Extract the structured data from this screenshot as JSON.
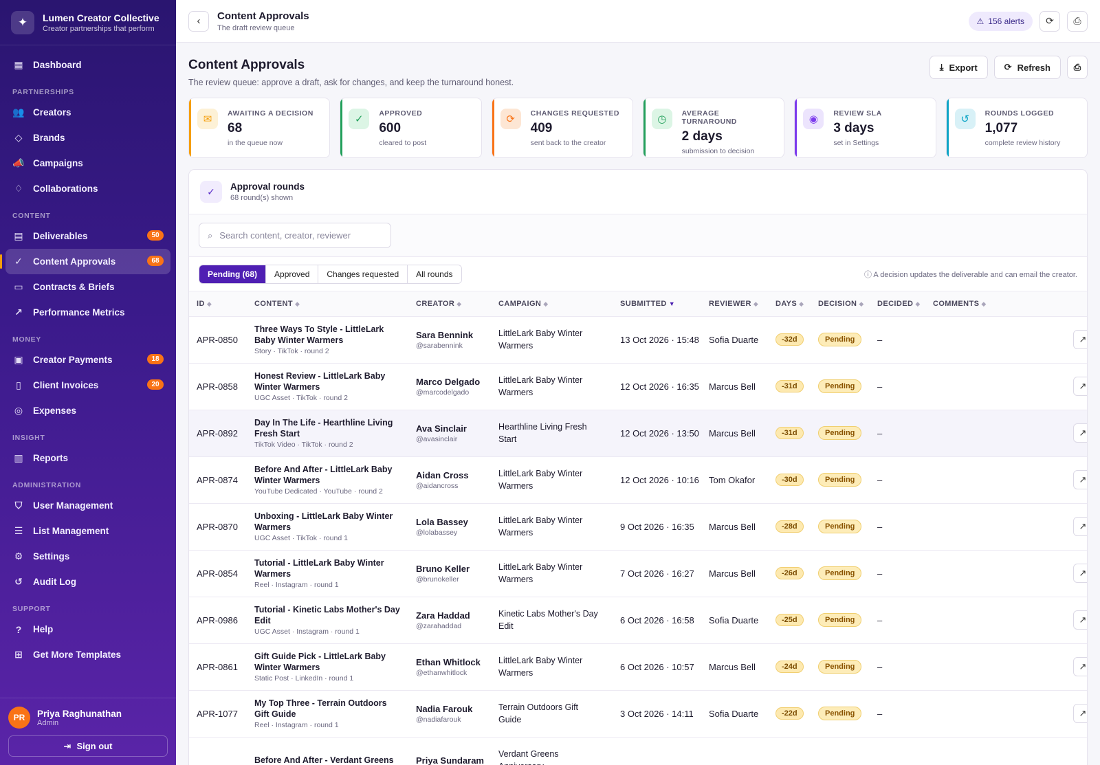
{
  "brand": {
    "name": "Lumen Creator Collective",
    "tagline": "Creator partnerships that perform",
    "logo_icon": "sparkles-icon"
  },
  "sidebar": {
    "dashboard": {
      "label": "Dashboard",
      "icon": "grid-icon"
    },
    "sections": [
      {
        "title": "PARTNERSHIPS",
        "items": [
          {
            "label": "Creators",
            "icon": "users-icon",
            "badge": null
          },
          {
            "label": "Brands",
            "icon": "tag-icon",
            "badge": null
          },
          {
            "label": "Campaigns",
            "icon": "megaphone-icon",
            "badge": null
          },
          {
            "label": "Collaborations",
            "icon": "handshake-icon",
            "badge": null
          }
        ]
      },
      {
        "title": "CONTENT",
        "items": [
          {
            "label": "Deliverables",
            "icon": "table-icon",
            "badge": "50"
          },
          {
            "label": "Content Approvals",
            "icon": "check-circle-icon",
            "badge": "68",
            "active": true
          },
          {
            "label": "Contracts & Briefs",
            "icon": "folder-icon",
            "badge": null
          },
          {
            "label": "Performance Metrics",
            "icon": "trend-icon",
            "badge": null
          }
        ]
      },
      {
        "title": "MONEY",
        "items": [
          {
            "label": "Creator Payments",
            "icon": "wallet-icon",
            "badge": "18"
          },
          {
            "label": "Client Invoices",
            "icon": "invoice-icon",
            "badge": "20"
          },
          {
            "label": "Expenses",
            "icon": "coins-icon",
            "badge": null
          }
        ]
      },
      {
        "title": "INSIGHT",
        "items": [
          {
            "label": "Reports",
            "icon": "bar-chart-icon",
            "badge": null
          }
        ]
      },
      {
        "title": "ADMINISTRATION",
        "items": [
          {
            "label": "User Management",
            "icon": "shield-icon",
            "badge": null
          },
          {
            "label": "List Management",
            "icon": "list-icon",
            "badge": null
          },
          {
            "label": "Settings",
            "icon": "gear-icon",
            "badge": null
          },
          {
            "label": "Audit Log",
            "icon": "history-icon",
            "badge": null
          }
        ]
      },
      {
        "title": "SUPPORT",
        "items": [
          {
            "label": "Help",
            "icon": "help-icon",
            "badge": null
          },
          {
            "label": "Get More Templates",
            "icon": "gift-icon",
            "badge": null
          }
        ]
      }
    ]
  },
  "user": {
    "initials": "PR",
    "name": "Priya Raghunathan",
    "role": "Admin",
    "signout_label": "Sign out"
  },
  "topbar": {
    "title": "Content Approvals",
    "subtitle": "The draft review queue",
    "alerts_label": "156 alerts"
  },
  "page": {
    "title": "Content Approvals",
    "subtitle": "The review queue: approve a draft, ask for changes, and keep the turnaround honest.",
    "export_label": "Export",
    "refresh_label": "Refresh"
  },
  "stats": [
    {
      "label": "AWAITING A DECISION",
      "value": "68",
      "note": "in the queue now",
      "icon": "inbox-icon",
      "color": "#f59e0b",
      "bg": "#fdf1d6"
    },
    {
      "label": "APPROVED",
      "value": "600",
      "note": "cleared to post",
      "icon": "check-circle-icon",
      "color": "#22a05b",
      "bg": "#dcf5e5"
    },
    {
      "label": "CHANGES REQUESTED",
      "value": "409",
      "note": "sent back to the creator",
      "icon": "refresh-icon",
      "color": "#f97316",
      "bg": "#fde6d4"
    },
    {
      "label": "AVERAGE TURNAROUND",
      "value": "2 days",
      "note": "submission to decision",
      "icon": "clock-icon",
      "color": "#22a05b",
      "bg": "#dcf5e5"
    },
    {
      "label": "REVIEW SLA",
      "value": "3 days",
      "note": "set in Settings",
      "icon": "target-icon",
      "color": "#7c3aed",
      "bg": "#ece4fd"
    },
    {
      "label": "ROUNDS LOGGED",
      "value": "1,077",
      "note": "complete review history",
      "icon": "history-icon",
      "color": "#0ea5c6",
      "bg": "#d8f1f7"
    }
  ],
  "panel": {
    "title": "Approval rounds",
    "subtitle": "68 round(s) shown",
    "search_placeholder": "Search content, creator, reviewer",
    "tabs": [
      "Pending (68)",
      "Approved",
      "Changes requested",
      "All rounds"
    ],
    "note": "A decision updates the deliverable and can email the creator."
  },
  "table": {
    "columns": [
      "ID",
      "CONTENT",
      "CREATOR",
      "CAMPAIGN",
      "SUBMITTED",
      "REVIEWER",
      "DAYS",
      "DECISION",
      "DECIDED",
      "COMMENTS"
    ],
    "sorted_column": "SUBMITTED",
    "rows": [
      {
        "id": "APR-0850",
        "title": "Three Ways To Style - LittleLark Baby Winter Warmers",
        "meta": "Story · TikTok · round 2",
        "creator": "Sara Bennink",
        "handle": "@sarabennink",
        "campaign": "LittleLark Baby Winter Warmers",
        "submitted": "13 Oct 2026 · 15:48",
        "reviewer": "Sofia Duarte",
        "days": "-32d",
        "decision": "Pending",
        "decided": "–"
      },
      {
        "id": "APR-0858",
        "title": "Honest Review - LittleLark Baby Winter Warmers",
        "meta": "UGC Asset · TikTok · round 2",
        "creator": "Marco Delgado",
        "handle": "@marcodelgado",
        "campaign": "LittleLark Baby Winter Warmers",
        "submitted": "12 Oct 2026 · 16:35",
        "reviewer": "Marcus Bell",
        "days": "-31d",
        "decision": "Pending",
        "decided": "–"
      },
      {
        "id": "APR-0892",
        "title": "Day In The Life - Hearthline Living Fresh Start",
        "meta": "TikTok Video · TikTok · round 2",
        "creator": "Ava Sinclair",
        "handle": "@avasinclair",
        "campaign": "Hearthline Living Fresh Start",
        "submitted": "12 Oct 2026 · 13:50",
        "reviewer": "Marcus Bell",
        "days": "-31d",
        "decision": "Pending",
        "decided": "–"
      },
      {
        "id": "APR-0874",
        "title": "Before And After - LittleLark Baby Winter Warmers",
        "meta": "YouTube Dedicated · YouTube · round 2",
        "creator": "Aidan Cross",
        "handle": "@aidancross",
        "campaign": "LittleLark Baby Winter Warmers",
        "submitted": "12 Oct 2026 · 10:16",
        "reviewer": "Tom Okafor",
        "days": "-30d",
        "decision": "Pending",
        "decided": "–"
      },
      {
        "id": "APR-0870",
        "title": "Unboxing - LittleLark Baby Winter Warmers",
        "meta": "UGC Asset · TikTok · round 1",
        "creator": "Lola Bassey",
        "handle": "@lolabassey",
        "campaign": "LittleLark Baby Winter Warmers",
        "submitted": "9 Oct 2026 · 16:35",
        "reviewer": "Marcus Bell",
        "days": "-28d",
        "decision": "Pending",
        "decided": "–"
      },
      {
        "id": "APR-0854",
        "title": "Tutorial - LittleLark Baby Winter Warmers",
        "meta": "Reel · Instagram · round 1",
        "creator": "Bruno Keller",
        "handle": "@brunokeller",
        "campaign": "LittleLark Baby Winter Warmers",
        "submitted": "7 Oct 2026 · 16:27",
        "reviewer": "Marcus Bell",
        "days": "-26d",
        "decision": "Pending",
        "decided": "–"
      },
      {
        "id": "APR-0986",
        "title": "Tutorial - Kinetic Labs Mother's Day Edit",
        "meta": "UGC Asset · Instagram · round 1",
        "creator": "Zara Haddad",
        "handle": "@zarahaddad",
        "campaign": "Kinetic Labs Mother's Day Edit",
        "submitted": "6 Oct 2026 · 16:58",
        "reviewer": "Sofia Duarte",
        "days": "-25d",
        "decision": "Pending",
        "decided": "–"
      },
      {
        "id": "APR-0861",
        "title": "Gift Guide Pick - LittleLark Baby Winter Warmers",
        "meta": "Static Post · LinkedIn · round 1",
        "creator": "Ethan Whitlock",
        "handle": "@ethanwhitlock",
        "campaign": "LittleLark Baby Winter Warmers",
        "submitted": "6 Oct 2026 · 10:57",
        "reviewer": "Marcus Bell",
        "days": "-24d",
        "decision": "Pending",
        "decided": "–"
      },
      {
        "id": "APR-1077",
        "title": "My Top Three - Terrain Outdoors Gift Guide",
        "meta": "Reel · Instagram · round 1",
        "creator": "Nadia Farouk",
        "handle": "@nadiafarouk",
        "campaign": "Terrain Outdoors Gift Guide",
        "submitted": "3 Oct 2026 · 14:11",
        "reviewer": "Sofia Duarte",
        "days": "-22d",
        "decision": "Pending",
        "decided": "–"
      },
      {
        "id": "",
        "title": "Before And After - Verdant Greens",
        "meta": "",
        "creator": "Priya Sundaram",
        "handle": "",
        "campaign": "Verdant Greens Anniversary",
        "submitted": "",
        "reviewer": "",
        "days": "",
        "decision": "",
        "decided": ""
      }
    ]
  }
}
